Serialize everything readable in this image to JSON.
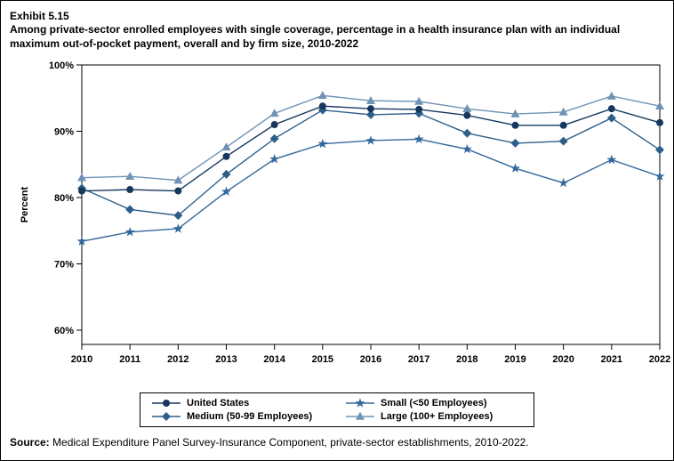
{
  "header": {
    "exhibit": "Exhibit 5.15",
    "title": "Among private-sector enrolled employees with single coverage, percentage in a health insurance plan with an individual maximum out-of-pocket payment, overall and by firm size, 2010-2022"
  },
  "chart_data": {
    "type": "line",
    "title": "Percentage in a health insurance plan with an individual maximum out-of-pocket payment, overall and by firm size, 2010-2022",
    "xlabel": "",
    "ylabel": "Percent",
    "x": [
      2010,
      2011,
      2012,
      2013,
      2014,
      2015,
      2016,
      2017,
      2018,
      2019,
      2020,
      2021,
      2022
    ],
    "yticks": [
      60,
      70,
      80,
      90,
      100
    ],
    "ytick_labels": [
      "60%",
      "70%",
      "80%",
      "90%",
      "100%"
    ],
    "ylim": [
      57.9,
      100
    ],
    "grid": false,
    "legend_position": "bottom",
    "series": [
      {
        "name": "United States",
        "marker": "circle",
        "color": "#17375e",
        "values": [
          81.0,
          81.2,
          81.0,
          86.2,
          91.0,
          93.8,
          93.4,
          93.3,
          92.4,
          90.9,
          90.9,
          93.4,
          91.3
        ]
      },
      {
        "name": "Medium (50-99 Employees)",
        "marker": "diamond",
        "color": "#2d5f8a",
        "values": [
          81.4,
          78.2,
          77.3,
          83.5,
          88.9,
          93.2,
          92.5,
          92.7,
          89.7,
          88.2,
          88.5,
          92.0,
          87.2
        ]
      },
      {
        "name": "Small (<50 Employees)",
        "marker": "star",
        "color": "#35699c",
        "values": [
          73.4,
          74.8,
          75.3,
          80.9,
          85.8,
          88.1,
          88.6,
          88.8,
          87.3,
          84.4,
          82.2,
          85.7,
          83.2
        ]
      },
      {
        "name": "Large (100+ Employees)",
        "marker": "triangle",
        "color": "#7093b5",
        "values": [
          83.0,
          83.2,
          82.6,
          87.6,
          92.7,
          95.4,
          94.6,
          94.5,
          93.4,
          92.6,
          92.9,
          95.3,
          93.8
        ]
      }
    ]
  },
  "footer": {
    "source_label": "Source:",
    "source_text": " Medical Expenditure Panel Survey-Insurance Component, private-sector establishments, 2010-2022."
  }
}
